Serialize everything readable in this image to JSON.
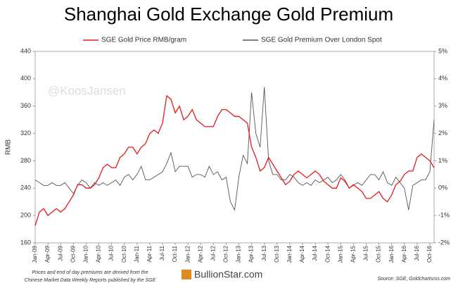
{
  "chart_data": {
    "type": "line",
    "title": "Shanghai Gold Exchange Gold Premium",
    "y_label": "RMB",
    "watermark": "@KoosJansen",
    "note": [
      "Prices and end of day premiums are derived from the",
      "Chinese Market Data Weekly Reports published by the SGE"
    ],
    "logo": "BullionStar.com",
    "source": "Source: SGE, Goldchartsrus.com",
    "categories": [
      "Jan-09",
      null,
      null,
      "Apr-09",
      null,
      null,
      "Jul-09",
      null,
      null,
      "Oct-09",
      null,
      null,
      "Jan-10",
      null,
      null,
      "Apr-10",
      null,
      null,
      "Jul-10",
      null,
      null,
      "Oct-10",
      null,
      null,
      "Jan-11",
      null,
      null,
      "Apr-11",
      null,
      null,
      "Jul-11",
      null,
      null,
      "Oct-11",
      null,
      null,
      "Jan-12",
      null,
      null,
      "Apr-12",
      null,
      null,
      "Jul-12",
      null,
      null,
      "Oct-12",
      null,
      null,
      "Jan-13",
      null,
      null,
      "Apr-13",
      null,
      null,
      "Jul-13",
      null,
      null,
      "Oct-13",
      null,
      null,
      "Jan-14",
      null,
      null,
      "Apr-14",
      null,
      null,
      "Jul-14",
      null,
      null,
      "Oct-14",
      null,
      null,
      "Jan-15",
      null,
      null,
      "Apr-15",
      null,
      null,
      "Jul-15",
      null,
      null,
      "Oct-15",
      null,
      null,
      "Jan-16",
      null,
      null,
      "Apr-16",
      null,
      null,
      "Jul-16",
      null,
      null,
      "Oct-16",
      null
    ],
    "series": [
      {
        "name": "SGE Gold Price RMB/gram",
        "color": "#e8191a",
        "axis": "y",
        "values": [
          185,
          205,
          210,
          200,
          205,
          210,
          205,
          210,
          220,
          230,
          245,
          245,
          240,
          240,
          245,
          255,
          270,
          275,
          270,
          270,
          285,
          290,
          300,
          300,
          290,
          300,
          305,
          320,
          325,
          320,
          335,
          375,
          370,
          350,
          360,
          340,
          345,
          355,
          340,
          335,
          330,
          330,
          330,
          345,
          355,
          355,
          350,
          345,
          345,
          340,
          335,
          300,
          285,
          265,
          270,
          285,
          275,
          265,
          255,
          245,
          250,
          260,
          265,
          260,
          255,
          260,
          265,
          260,
          250,
          245,
          240,
          240,
          255,
          250,
          240,
          245,
          240,
          235,
          225,
          225,
          230,
          235,
          225,
          220,
          230,
          245,
          250,
          260,
          265,
          265,
          285,
          290,
          285,
          280,
          270
        ]
      },
      {
        "name": "SGE Gold Premium Over London Spot",
        "color": "#555555",
        "axis": "y2",
        "values": [
          0.3,
          0.2,
          0.1,
          0.1,
          0.2,
          0.1,
          0.1,
          0.2,
          0.0,
          -0.2,
          0.1,
          0.3,
          0.2,
          0.0,
          0.2,
          0.1,
          0.2,
          0.1,
          0.2,
          0.3,
          0.1,
          0.4,
          0.5,
          0.3,
          0.5,
          0.8,
          0.3,
          0.3,
          0.4,
          0.5,
          0.6,
          0.9,
          1.3,
          0.6,
          0.8,
          0.8,
          0.8,
          0.4,
          0.5,
          0.5,
          0.4,
          0.8,
          0.5,
          0.6,
          0.3,
          0.4,
          -0.5,
          -0.8,
          0.4,
          1.2,
          0.9,
          3.5,
          2.0,
          1.5,
          3.7,
          1.0,
          0.5,
          0.5,
          0.3,
          0.3,
          0.5,
          0.4,
          0.2,
          0.1,
          0.2,
          0.1,
          0.3,
          0.2,
          0.3,
          0.4,
          0.2,
          0.3,
          0.5,
          0.3,
          0.0,
          0.1,
          0.2,
          0.1,
          0.3,
          0.5,
          0.5,
          0.3,
          0.6,
          0.2,
          0.1,
          0.4,
          0.2,
          0.0,
          -0.8,
          0.1,
          0.2,
          0.3,
          0.3,
          0.6,
          2.5
        ]
      }
    ],
    "ylim": [
      160,
      440
    ],
    "yticks": [
      160,
      200,
      240,
      280,
      320,
      360,
      400,
      440
    ],
    "y2lim": [
      -2,
      5
    ],
    "y2ticks": [
      {
        "value": -2,
        "label": "-2%"
      },
      {
        "value": -1,
        "label": "-1%"
      },
      {
        "value": 0,
        "label": "0%"
      },
      {
        "value": 1,
        "label": "1%"
      },
      {
        "value": 2,
        "label": "2%"
      },
      {
        "value": 3,
        "label": "3%"
      },
      {
        "value": 4,
        "label": "4%"
      },
      {
        "value": 5,
        "label": "5%"
      }
    ]
  }
}
